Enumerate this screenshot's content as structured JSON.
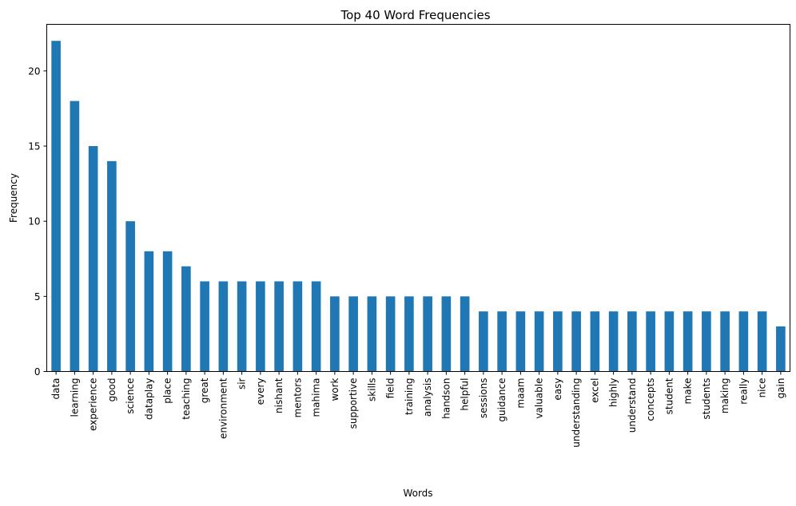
{
  "chart_data": {
    "type": "bar",
    "title": "Top 40 Word Frequencies",
    "xlabel": "Words",
    "ylabel": "Frequency",
    "ylim": [
      0,
      23.1
    ],
    "yticks": [
      0,
      5,
      10,
      15,
      20
    ],
    "grid": false,
    "legend": "none",
    "bar_color": "#1f77b4",
    "categories": [
      "data",
      "learning",
      "experience",
      "good",
      "science",
      "dataplay",
      "place",
      "teaching",
      "great",
      "environment",
      "sir",
      "every",
      "nishant",
      "mentors",
      "mahima",
      "work",
      "supportive",
      "skills",
      "field",
      "training",
      "analysis",
      "handson",
      "helpful",
      "sessions",
      "guidance",
      "maam",
      "valuable",
      "easy",
      "understanding",
      "excel",
      "highly",
      "understand",
      "concepts",
      "student",
      "make",
      "students",
      "making",
      "really",
      "nice",
      "gain"
    ],
    "values": [
      22,
      18,
      15,
      14,
      10,
      8,
      8,
      7,
      6,
      6,
      6,
      6,
      6,
      6,
      6,
      5,
      5,
      5,
      5,
      5,
      5,
      5,
      5,
      4,
      4,
      4,
      4,
      4,
      4,
      4,
      4,
      4,
      4,
      4,
      4,
      4,
      4,
      4,
      4,
      3
    ]
  }
}
